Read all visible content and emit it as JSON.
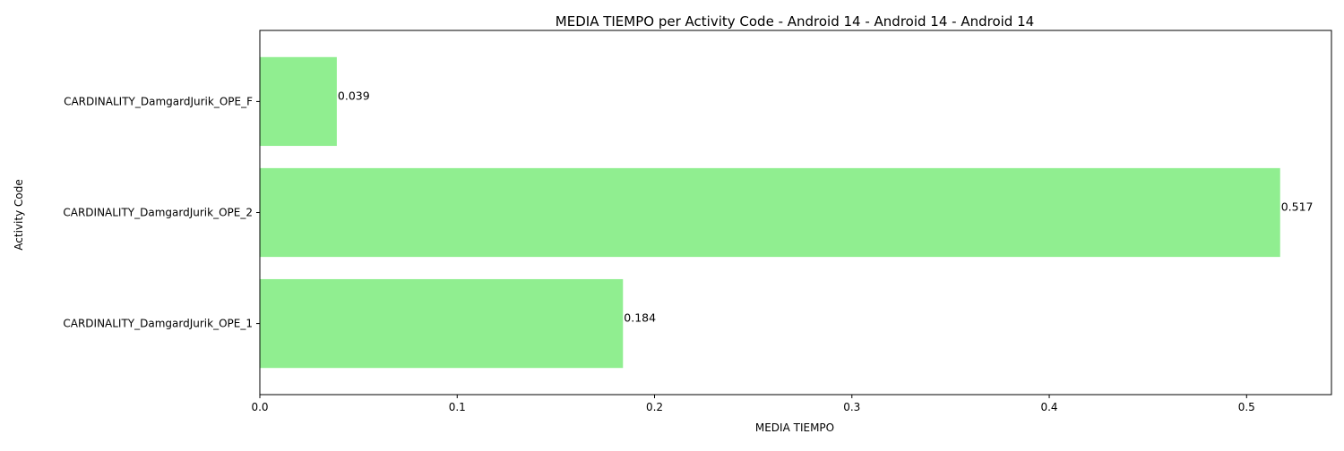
{
  "chart_data": {
    "type": "bar",
    "orientation": "horizontal",
    "title": "MEDIA TIEMPO per Activity Code - Android 14 - Android 14 - Android 14",
    "xlabel": "MEDIA TIEMPO",
    "ylabel": "Activity Code",
    "categories": [
      "CARDINALITY_DamgardJurik_OPE_1",
      "CARDINALITY_DamgardJurik_OPE_2",
      "CARDINALITY_DamgardJurik_OPE_F"
    ],
    "values": [
      0.184,
      0.517,
      0.039
    ],
    "value_labels": [
      "0.184",
      "0.517",
      "0.039"
    ],
    "xlim": [
      0,
      0.543
    ],
    "xticks": [
      0,
      0.1,
      0.2,
      0.3,
      0.4,
      0.5
    ],
    "xtick_labels": [
      "0.0",
      "0.1",
      "0.2",
      "0.3",
      "0.4",
      "0.5"
    ],
    "grid": false,
    "bar_color": "#90ee90"
  }
}
